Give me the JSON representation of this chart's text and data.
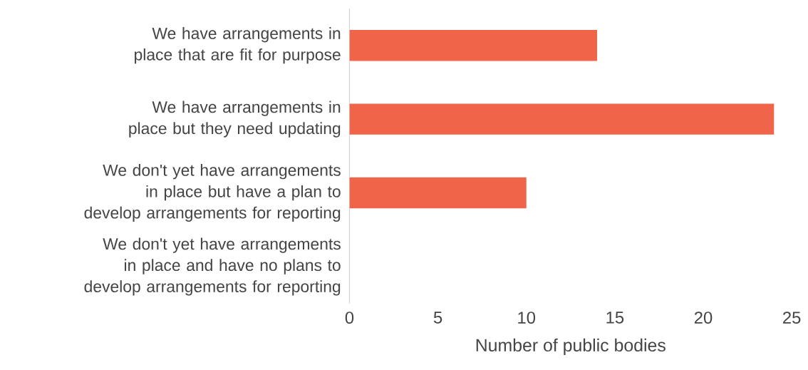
{
  "chart_data": {
    "type": "bar",
    "orientation": "horizontal",
    "xlabel": "Number of public bodies",
    "categories": [
      "We have arrangements in place that are fit for purpose",
      "We have arrangements in place but they need updating",
      "We don't yet have arrangements in place but have a plan to develop arrangements for reporting",
      "We don't yet have arrangements in place and have no plans to develop arrangements for reporting"
    ],
    "values": [
      14,
      24,
      10,
      0
    ],
    "color": "#f0644a",
    "xlim": [
      0,
      25
    ],
    "xticks": [
      0,
      5,
      10,
      15,
      20,
      25
    ]
  }
}
